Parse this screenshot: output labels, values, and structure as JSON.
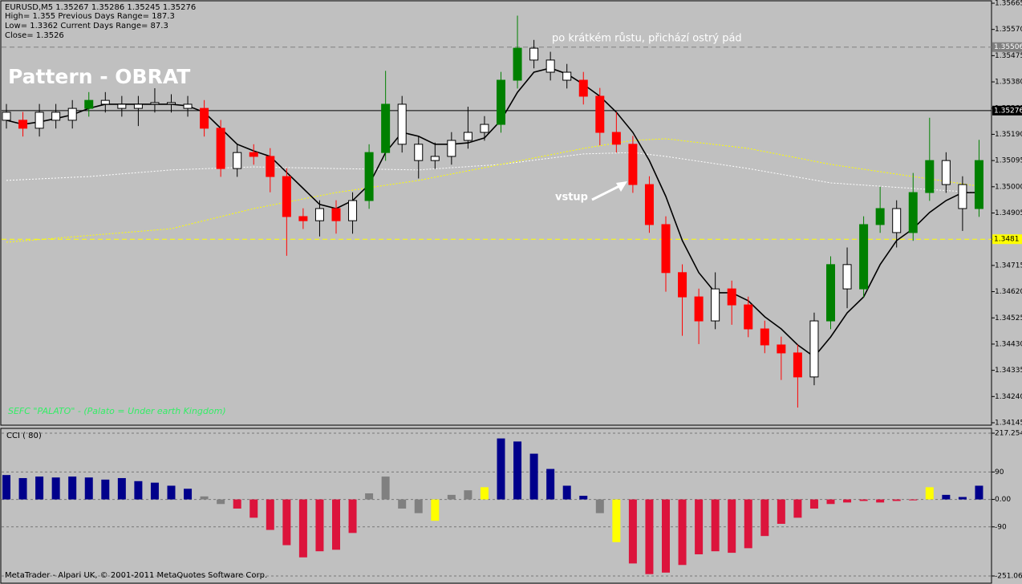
{
  "info": [
    "EURUSD,M5  1.35267 1.35286 1.35245 1.35276",
    "High= 1.355    Previous Days Range= 187.3",
    "Low= 1.3362    Current Days Range= 87.3",
    "Close= 1.3526"
  ],
  "footer": "MetaTrader - Alpari UK, © 2001-2011 MetaQuotes Software Corp.",
  "chart_data": [
    {
      "type": "candlestick",
      "title": "Pattern - OBRAT",
      "annotations": [
        "po krátkém růstu, přichází ostrý pád",
        "vstup",
        "SEFC \"PALATO\" - (Palato = Under earth Kingdom)"
      ],
      "open": [
        1.3527,
        1.35241,
        1.35212,
        1.3527,
        1.35241,
        1.35284,
        1.35313,
        1.35299,
        1.35284,
        1.35299,
        1.35305,
        1.35299,
        1.35284,
        1.35212,
        1.35066,
        1.35124,
        1.3511,
        1.35037,
        1.34892,
        1.34877,
        1.34921,
        1.34877,
        1.3495,
        1.35124,
        1.35299,
        1.35154,
        1.35095,
        1.3511,
        1.35168,
        1.35197,
        1.35226,
        1.35386,
        1.35502,
        1.35459,
        1.35415,
        1.35386,
        1.35328,
        1.35197,
        1.35154,
        1.35008,
        1.34863,
        1.34689,
        1.34601,
        1.34514,
        1.3463,
        1.34572,
        1.34485,
        1.34427,
        1.34398,
        1.34311,
        1.34514,
        1.34718,
        1.3463,
        1.34863,
        1.34921,
        1.34834,
        1.34979,
        1.35095,
        1.35008,
        1.34921
      ],
      "high": [
        1.353,
        1.35271,
        1.353,
        1.353,
        1.35314,
        1.35343,
        1.35343,
        1.35329,
        1.35329,
        1.35357,
        1.35335,
        1.35329,
        1.35314,
        1.35242,
        1.35154,
        1.35154,
        1.3514,
        1.35067,
        1.34922,
        1.34951,
        1.34951,
        1.3498,
        1.35154,
        1.3542,
        1.35329,
        1.35184,
        1.3516,
        1.35198,
        1.3529,
        1.35256,
        1.35416,
        1.3562,
        1.35532,
        1.35489,
        1.35445,
        1.35416,
        1.35358,
        1.3527,
        1.35184,
        1.35038,
        1.34893,
        1.34719,
        1.34631,
        1.3469,
        1.3466,
        1.34602,
        1.34515,
        1.34457,
        1.34428,
        1.34544,
        1.34748,
        1.3478,
        1.34893,
        1.35,
        1.34951,
        1.3505,
        1.3525,
        1.35125,
        1.35038,
        1.3517
      ],
      "low": [
        1.35211,
        1.35182,
        1.35182,
        1.35211,
        1.35211,
        1.35254,
        1.35269,
        1.35254,
        1.3522,
        1.35269,
        1.35269,
        1.35254,
        1.35182,
        1.35036,
        1.35036,
        1.3508,
        1.3498,
        1.3475,
        1.34847,
        1.3482,
        1.3483,
        1.3483,
        1.3492,
        1.35094,
        1.35124,
        1.3503,
        1.35065,
        1.3508,
        1.35138,
        1.35167,
        1.35196,
        1.35356,
        1.35429,
        1.35385,
        1.35356,
        1.35298,
        1.3515,
        1.35124,
        1.34978,
        1.34833,
        1.3462,
        1.3446,
        1.3443,
        1.34484,
        1.345,
        1.34455,
        1.34397,
        1.343,
        1.342,
        1.34281,
        1.34484,
        1.3456,
        1.346,
        1.34833,
        1.3478,
        1.34804,
        1.34949,
        1.34978,
        1.3484,
        1.34891
      ],
      "close": [
        1.35241,
        1.35212,
        1.3527,
        1.35241,
        1.35284,
        1.35313,
        1.35299,
        1.35284,
        1.35299,
        1.35305,
        1.35299,
        1.35284,
        1.35212,
        1.35066,
        1.35124,
        1.3511,
        1.35037,
        1.34892,
        1.34877,
        1.34921,
        1.34877,
        1.3495,
        1.35124,
        1.35299,
        1.35154,
        1.35095,
        1.3511,
        1.35168,
        1.35197,
        1.35226,
        1.35386,
        1.35502,
        1.35459,
        1.35415,
        1.35386,
        1.35328,
        1.35197,
        1.35154,
        1.35008,
        1.34863,
        1.34689,
        1.34601,
        1.34514,
        1.3463,
        1.34572,
        1.34485,
        1.34427,
        1.34398,
        1.34311,
        1.34514,
        1.34718,
        1.3463,
        1.34863,
        1.34921,
        1.34834,
        1.34979,
        1.35095,
        1.35008,
        1.34921,
        1.35095
      ],
      "colors": [
        "#ffffff",
        "#ff0000",
        "#ffffff",
        "#ffffff",
        "#ffffff",
        "#008000",
        "#ffffff",
        "#ffffff",
        "#ffffff",
        "#ffffff",
        "#ffffff",
        "#ffffff",
        "#ff0000",
        "#ff0000",
        "#ffffff",
        "#ff0000",
        "#ff0000",
        "#ff0000",
        "#ff0000",
        "#ffffff",
        "#ff0000",
        "#ffffff",
        "#008000",
        "#008000",
        "#ffffff",
        "#ffffff",
        "#ffffff",
        "#ffffff",
        "#ffffff",
        "#ffffff",
        "#008000",
        "#008000",
        "#ffffff",
        "#ffffff",
        "#ffffff",
        "#ff0000",
        "#ff0000",
        "#ff0000",
        "#ff0000",
        "#ff0000",
        "#ff0000",
        "#ff0000",
        "#ff0000",
        "#ffffff",
        "#ff0000",
        "#ff0000",
        "#ff0000",
        "#ff0000",
        "#ff0000",
        "#ffffff",
        "#008000",
        "#ffffff",
        "#008000",
        "#008000",
        "#ffffff",
        "#008000",
        "#008000",
        "#ffffff",
        "#ffffff",
        "#008000"
      ],
      "lines": [
        {
          "color": "#ffffff",
          "dash": true,
          "x": [
            0,
            5,
            10,
            15,
            20,
            25,
            30,
            35,
            38,
            40,
            45,
            50,
            55,
            59
          ],
          "values": [
            1.35023,
            1.35037,
            1.35061,
            1.35072,
            1.35066,
            1.35061,
            1.35081,
            1.35119,
            1.35124,
            1.3511,
            1.35066,
            1.35014,
            1.34994,
            1.34979
          ]
        },
        {
          "color": "#ffff00",
          "dash": true,
          "x": [
            0,
            10,
            15,
            20,
            25,
            30,
            35,
            38,
            40,
            45,
            50,
            55,
            59
          ],
          "values": [
            1.34799,
            1.34848,
            1.34921,
            1.34979,
            1.35023,
            1.35081,
            1.35139,
            1.35168,
            1.35174,
            1.35139,
            1.35081,
            1.35037,
            1.35002
          ]
        },
        {
          "color": "#000000",
          "dash": false,
          "values": [
            1.35241,
            1.35226,
            1.35235,
            1.35247,
            1.35261,
            1.35284,
            1.35299,
            1.35299,
            1.35299,
            1.35299,
            1.35299,
            1.35293,
            1.3527,
            1.35212,
            1.35154,
            1.3513,
            1.3511,
            1.35052,
            1.34994,
            1.34936,
            1.34921,
            1.3495,
            1.35008,
            1.35124,
            1.35197,
            1.35183,
            1.35154,
            1.35154,
            1.35159,
            1.35177,
            1.35241,
            1.35342,
            1.35415,
            1.3543,
            1.35409,
            1.35371,
            1.35328,
            1.3527,
            1.35197,
            1.35095,
            1.34965,
            1.34805,
            1.34689,
            1.34616,
            1.34616,
            1.34587,
            1.34529,
            1.34485,
            1.34427,
            1.34384,
            1.34456,
            1.34543,
            1.34601,
            1.34718,
            1.34805,
            1.34848,
            1.34907,
            1.3495,
            1.34979,
            1.34979
          ]
        }
      ],
      "levels": [
        {
          "value": 1.35506,
          "color": "#808080",
          "text_color": "#ffffff",
          "dash": true
        },
        {
          "value": 1.35276,
          "color": "#000000",
          "text_color": "#ffffff",
          "dash": false
        },
        {
          "value": 1.3481,
          "color": "#ffff00",
          "text_color": "#000000",
          "dash": true
        }
      ],
      "ylim": [
        1.34145,
        1.35665
      ],
      "yticks": [
        1.35665,
        {
          "value": 1.3557,
          "label": "1.35570"
        },
        1.35475,
        {
          "value": 1.3538,
          "label": "1.35380"
        },
        1.35285,
        {
          "value": 1.3519,
          "label": "1.35190"
        },
        1.35095,
        {
          "value": 1.35,
          "label": "1.35000"
        },
        1.34905,
        {
          "value": 1.3481,
          "label": "1.34810"
        },
        1.34715,
        {
          "value": 1.3462,
          "label": "1.34620"
        },
        1.34525,
        {
          "value": 1.3443,
          "label": "1.34430"
        },
        1.34335,
        {
          "value": 1.3424,
          "label": "1.34240"
        },
        1.34145
      ]
    },
    {
      "type": "bar",
      "title": "CCI ( 80)",
      "values": [
        80,
        70,
        75,
        72,
        75,
        72,
        65,
        70,
        60,
        55,
        45,
        35,
        10,
        -15,
        -30,
        -60,
        -100,
        -150,
        -190,
        -170,
        -165,
        -110,
        20,
        75,
        -30,
        -45,
        -70,
        15,
        30,
        40,
        200,
        190,
        150,
        100,
        45,
        12,
        -45,
        -140,
        -210,
        -245,
        -240,
        -215,
        -180,
        -170,
        -175,
        -160,
        -120,
        -80,
        -60,
        -30,
        -15,
        -10,
        -5,
        -10,
        -5,
        -3,
        40,
        15,
        8,
        45
      ],
      "colors": [
        "#00008b",
        "#00008b",
        "#00008b",
        "#00008b",
        "#00008b",
        "#00008b",
        "#00008b",
        "#00008b",
        "#00008b",
        "#00008b",
        "#00008b",
        "#00008b",
        "#808080",
        "#808080",
        "#dc143c",
        "#dc143c",
        "#dc143c",
        "#dc143c",
        "#dc143c",
        "#dc143c",
        "#dc143c",
        "#dc143c",
        "#808080",
        "#808080",
        "#808080",
        "#808080",
        "#ffff00",
        "#808080",
        "#808080",
        "#ffff00",
        "#00008b",
        "#00008b",
        "#00008b",
        "#00008b",
        "#00008b",
        "#00008b",
        "#808080",
        "#ffff00",
        "#dc143c",
        "#dc143c",
        "#dc143c",
        "#dc143c",
        "#dc143c",
        "#dc143c",
        "#dc143c",
        "#dc143c",
        "#dc143c",
        "#dc143c",
        "#dc143c",
        "#dc143c",
        "#dc143c",
        "#dc143c",
        "#dc143c",
        "#dc143c",
        "#dc143c",
        "#dc143c",
        "#ffff00",
        "#00008b",
        "#00008b",
        "#00008b"
      ],
      "ylim": [
        -251.068,
        217.254
      ],
      "yticks": [
        217.254,
        90,
        {
          "value": 0,
          "label": "0.00"
        },
        -90,
        -251.068
      ],
      "grid": true
    }
  ]
}
